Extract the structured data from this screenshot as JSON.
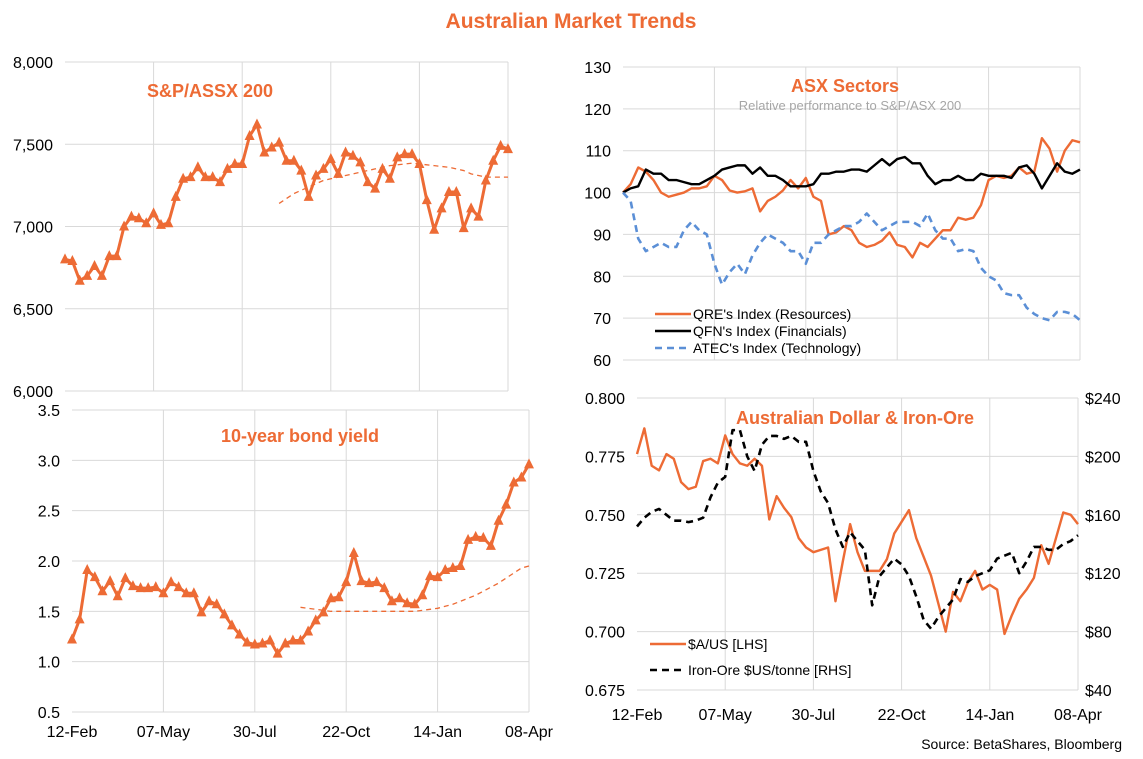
{
  "title": "Australian Market Trends",
  "source": "Source:  BetaShares, Bloomberg",
  "colors": {
    "orange": "#ED6B35",
    "black": "#000000",
    "blue": "#5B8FD6",
    "grid": "#D9D9D9"
  },
  "chart_data": [
    {
      "type": "line",
      "title": "S&P/ASSX 200",
      "ylim": [
        6000,
        8000
      ],
      "yticks": [
        6000,
        6500,
        7000,
        7500,
        8000
      ],
      "ytick_labels": [
        "6,000",
        "6,500",
        "7,000",
        "7,500",
        "8,000"
      ],
      "grid": true,
      "series": [
        {
          "style": "solid-triangle-markers",
          "color": "#ED6B35",
          "values": [
            6800,
            6790,
            6670,
            6700,
            6760,
            6700,
            6820,
            6820,
            7000,
            7060,
            7050,
            7020,
            7080,
            7010,
            7020,
            7180,
            7290,
            7300,
            7360,
            7300,
            7300,
            7270,
            7350,
            7380,
            7380,
            7550,
            7620,
            7450,
            7480,
            7510,
            7400,
            7400,
            7340,
            7180,
            7310,
            7350,
            7410,
            7320,
            7450,
            7430,
            7390,
            7270,
            7230,
            7350,
            7290,
            7420,
            7440,
            7440,
            7380,
            7160,
            6980,
            7110,
            7210,
            7210,
            6990,
            7110,
            7060,
            7280,
            7400,
            7490,
            7470
          ]
        },
        {
          "style": "dashed-thin",
          "color": "#ED6B35",
          "values": [
            null,
            null,
            null,
            null,
            null,
            null,
            null,
            null,
            null,
            null,
            null,
            null,
            null,
            null,
            null,
            null,
            null,
            null,
            null,
            null,
            null,
            null,
            null,
            null,
            null,
            null,
            null,
            null,
            null,
            7140,
            7170,
            7200,
            7220,
            7240,
            7260,
            7280,
            7290,
            7300,
            7310,
            7320,
            7330,
            7340,
            7350,
            7360,
            7370,
            7375,
            7380,
            7385,
            7380,
            7375,
            7370,
            7365,
            7360,
            7350,
            7340,
            7320,
            7310,
            7300,
            7300,
            7300,
            7300
          ]
        }
      ]
    },
    {
      "type": "line",
      "title": "10-year bond yield",
      "ylim": [
        0.5,
        3.5
      ],
      "yticks": [
        0.5,
        1.0,
        1.5,
        2.0,
        2.5,
        3.0,
        3.5
      ],
      "ytick_labels": [
        "0.5",
        "1.0",
        "1.5",
        "2.0",
        "2.5",
        "3.0",
        "3.5"
      ],
      "x_tick_labels": [
        "12-Feb",
        "07-May",
        "30-Jul",
        "22-Oct",
        "14-Jan",
        "08-Apr"
      ],
      "grid": true,
      "series": [
        {
          "style": "solid-triangle-markers",
          "color": "#ED6B35",
          "values": [
            1.22,
            1.42,
            1.91,
            1.84,
            1.7,
            1.8,
            1.65,
            1.83,
            1.75,
            1.73,
            1.73,
            1.74,
            1.68,
            1.79,
            1.74,
            1.68,
            1.68,
            1.49,
            1.6,
            1.57,
            1.47,
            1.36,
            1.27,
            1.19,
            1.17,
            1.18,
            1.21,
            1.08,
            1.18,
            1.21,
            1.21,
            1.3,
            1.41,
            1.49,
            1.63,
            1.64,
            1.79,
            2.08,
            1.8,
            1.78,
            1.79,
            1.73,
            1.6,
            1.63,
            1.58,
            1.57,
            1.66,
            1.85,
            1.84,
            1.91,
            1.93,
            1.95,
            2.21,
            2.24,
            2.23,
            2.15,
            2.4,
            2.56,
            2.78,
            2.83,
            2.96
          ]
        },
        {
          "style": "dashed-thin",
          "color": "#ED6B35",
          "values": [
            null,
            null,
            null,
            null,
            null,
            null,
            null,
            null,
            null,
            null,
            null,
            null,
            null,
            null,
            null,
            null,
            null,
            null,
            null,
            null,
            null,
            null,
            null,
            null,
            null,
            null,
            null,
            null,
            null,
            null,
            1.54,
            1.53,
            1.52,
            1.51,
            1.5,
            1.5,
            1.5,
            1.5,
            1.5,
            1.5,
            1.5,
            1.5,
            1.5,
            1.5,
            1.5,
            1.5,
            1.51,
            1.52,
            1.53,
            1.55,
            1.57,
            1.6,
            1.63,
            1.66,
            1.7,
            1.74,
            1.78,
            1.83,
            1.88,
            1.93,
            1.95
          ]
        }
      ]
    },
    {
      "type": "line",
      "title": "ASX Sectors",
      "subtitle": "Relative performance to S&P/ASX 200",
      "ylim": [
        60,
        130
      ],
      "yticks": [
        60,
        70,
        80,
        90,
        100,
        110,
        120,
        130
      ],
      "ytick_labels": [
        "60",
        "70",
        "80",
        "90",
        "100",
        "110",
        "120",
        "130"
      ],
      "grid": true,
      "legend": "bottom-left",
      "series": [
        {
          "name": "QRE's Index (Resources)",
          "style": "solid",
          "color": "#ED6B35",
          "values": [
            100,
            102,
            106,
            105,
            103,
            100,
            99,
            99.5,
            100,
            101,
            101,
            101.5,
            104,
            103,
            100.5,
            100,
            100.3,
            101,
            95.5,
            98,
            99,
            100.5,
            103,
            101,
            103.5,
            99,
            98,
            90,
            90.5,
            92,
            91,
            88,
            87,
            87.5,
            88.5,
            90.5,
            87.5,
            87,
            84.5,
            88,
            87,
            89,
            91,
            91,
            94,
            93.5,
            94,
            97,
            103,
            104,
            103.5,
            104,
            106,
            104.5,
            105,
            113,
            110.5,
            105,
            110,
            112.5,
            112
          ]
        },
        {
          "name": "QFN's Index (Financials)",
          "style": "solid",
          "color": "#000000",
          "values": [
            100,
            101,
            101.5,
            105.5,
            104.5,
            104.5,
            103,
            103,
            102.5,
            102,
            102,
            103,
            104,
            105.5,
            106,
            106.5,
            106.5,
            104.5,
            106,
            104,
            104,
            103,
            101.5,
            101.5,
            101.5,
            102,
            104.5,
            104.5,
            105,
            105,
            105.5,
            105.5,
            105,
            106.5,
            108,
            106.5,
            108,
            108.5,
            107,
            107,
            104,
            102,
            103,
            103,
            104,
            103,
            103,
            104.5,
            104,
            104,
            104,
            103.5,
            106,
            106.5,
            104.5,
            101,
            104,
            107,
            105,
            104.5,
            105.5
          ]
        },
        {
          "name": "ATEC's Index (Technology)",
          "style": "dashed",
          "color": "#5B8FD6",
          "values": [
            100,
            98,
            89,
            86,
            87,
            88,
            87,
            87,
            91,
            93,
            91,
            90,
            83,
            78,
            81,
            83,
            80.5,
            85,
            88,
            90,
            89,
            88,
            86,
            86,
            83,
            88,
            88,
            90,
            91,
            92,
            92,
            93,
            95,
            93,
            91,
            92,
            93,
            93,
            93,
            92,
            95,
            91,
            89,
            89,
            86,
            86.5,
            86,
            82,
            80,
            79,
            76,
            75.5,
            75.5,
            72.5,
            71,
            70,
            69.5,
            71.5,
            71.5,
            71,
            69.5
          ]
        }
      ]
    },
    {
      "type": "line",
      "title": "Australian Dollar  & Iron-Ore",
      "ylim": [
        0.675,
        0.8
      ],
      "yticks": [
        0.675,
        0.7,
        0.725,
        0.75,
        0.775,
        0.8
      ],
      "ytick_labels": [
        "0.675",
        "0.700",
        "0.725",
        "0.750",
        "0.775",
        "0.800"
      ],
      "y2lim": [
        40,
        240
      ],
      "y2ticks": [
        40,
        80,
        120,
        160,
        200,
        240
      ],
      "y2tick_labels": [
        "$40",
        "$80",
        "$120",
        "$160",
        "$200",
        "$240"
      ],
      "x_tick_labels": [
        "12-Feb",
        "07-May",
        "30-Jul",
        "22-Oct",
        "14-Jan",
        "08-Apr"
      ],
      "grid": true,
      "legend": "bottom-left",
      "series": [
        {
          "name": "$A/US [LHS]",
          "axis": "left",
          "style": "solid",
          "color": "#ED6B35",
          "values": [
            0.776,
            0.787,
            0.771,
            0.769,
            0.776,
            0.774,
            0.764,
            0.761,
            0.762,
            0.773,
            0.774,
            0.772,
            0.784,
            0.776,
            0.772,
            0.771,
            0.774,
            0.771,
            0.748,
            0.758,
            0.753,
            0.749,
            0.74,
            0.736,
            0.734,
            0.735,
            0.736,
            0.713,
            0.73,
            0.746,
            0.734,
            0.726,
            0.726,
            0.726,
            0.731,
            0.742,
            0.747,
            0.752,
            0.74,
            0.732,
            0.724,
            0.712,
            0.7,
            0.717,
            0.713,
            0.721,
            0.726,
            0.718,
            0.72,
            0.718,
            0.699,
            0.707,
            0.714,
            0.718,
            0.723,
            0.737,
            0.729,
            0.74,
            0.751,
            0.75,
            0.746
          ]
        },
        {
          "name": "Iron-Ore $US/tonne [RHS]",
          "axis": "right",
          "style": "dashed",
          "color": "#000000",
          "values": [
            152,
            158,
            162,
            164,
            160,
            156,
            156,
            155,
            156,
            158,
            172,
            182,
            186,
            218,
            218,
            200,
            190,
            208,
            214,
            214,
            212,
            214,
            210,
            210,
            190,
            176,
            168,
            150,
            138,
            148,
            142,
            136,
            98,
            118,
            124,
            130,
            126,
            118,
            104,
            88,
            82,
            90,
            96,
            102,
            116,
            114,
            118,
            120,
            122,
            130,
            132,
            134,
            120,
            128,
            138,
            138,
            136,
            136,
            140,
            142,
            146
          ]
        }
      ]
    }
  ]
}
